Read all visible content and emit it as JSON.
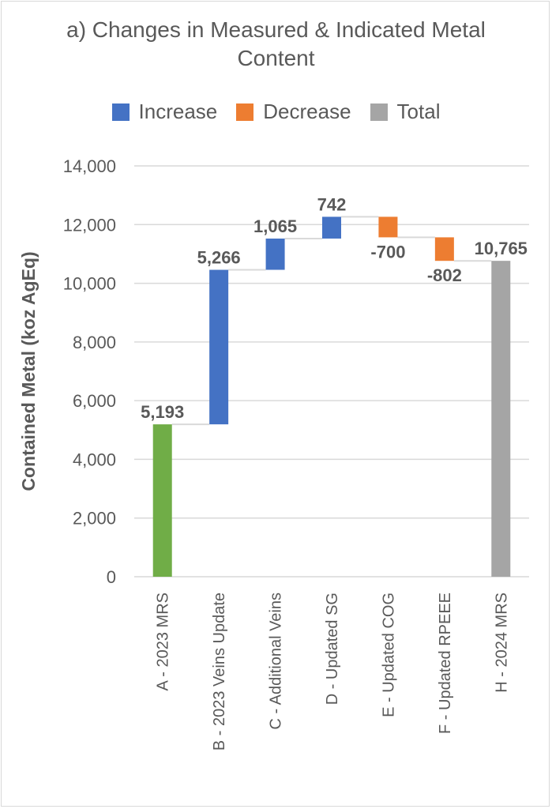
{
  "chart_data": {
    "type": "bar",
    "subtype": "waterfall",
    "title_line1": "a) Changes in Measured & Indicated Metal",
    "title_line2": "Content",
    "ylabel": "Contained Metal (koz AgEq)",
    "xlabel": "",
    "ylim": [
      0,
      14000
    ],
    "yticks": [
      "0",
      "2,000",
      "4,000",
      "6,000",
      "8,000",
      "10,000",
      "12,000",
      "14,000"
    ],
    "ytick_values": [
      0,
      2000,
      4000,
      6000,
      8000,
      10000,
      12000,
      14000
    ],
    "grid": true,
    "legend_position": "top",
    "legend": [
      {
        "label": "Increase",
        "color": "#4472c4"
      },
      {
        "label": "Decrease",
        "color": "#ed7d31"
      },
      {
        "label": "Total",
        "color": "#a5a5a5"
      }
    ],
    "categories": [
      "A - 2023 MRS",
      "B - 2023 Veins Update",
      "C - Additional Veins",
      "D - Updated SG",
      "E - Updated COG",
      "F - Updated RPEEE",
      "H - 2024 MRS"
    ],
    "values": [
      5193,
      5266,
      1065,
      742,
      -700,
      -802,
      10765
    ],
    "labels": [
      "5,193",
      "5,266",
      "1,065",
      "742",
      "-700",
      "-802",
      "10,765"
    ],
    "kinds": [
      "start",
      "increase",
      "increase",
      "increase",
      "decrease",
      "decrease",
      "total"
    ],
    "colors": [
      "#70ad47",
      "#4472c4",
      "#4472c4",
      "#4472c4",
      "#ed7d31",
      "#ed7d31",
      "#a5a5a5"
    ]
  }
}
